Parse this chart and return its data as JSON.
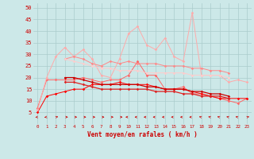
{
  "x": [
    0,
    1,
    2,
    3,
    4,
    5,
    6,
    7,
    8,
    9,
    10,
    11,
    12,
    13,
    14,
    15,
    16,
    17,
    18,
    19,
    20,
    21,
    22,
    23
  ],
  "series": [
    {
      "color": "#ff6666",
      "linewidth": 0.7,
      "markersize": 1.8,
      "values": [
        7,
        19,
        19,
        19,
        19,
        20,
        19,
        18,
        19,
        19,
        21,
        27,
        21,
        21,
        15,
        15,
        16,
        13,
        13,
        12,
        11,
        10,
        9,
        11
      ]
    },
    {
      "color": "#ff0000",
      "linewidth": 0.7,
      "markersize": 1.8,
      "values": [
        5,
        12,
        13,
        14,
        15,
        15,
        17,
        17,
        17,
        18,
        17,
        17,
        17,
        16,
        15,
        15,
        15,
        14,
        13,
        12,
        11,
        11,
        11,
        11
      ]
    },
    {
      "color": "#ffaaaa",
      "linewidth": 0.7,
      "markersize": 1.8,
      "values": [
        6,
        20,
        29,
        33,
        29,
        32,
        28,
        21,
        20,
        28,
        39,
        42,
        34,
        32,
        37,
        29,
        27,
        48,
        21,
        21,
        21,
        18,
        19,
        18
      ]
    },
    {
      "color": "#ff8888",
      "linewidth": 0.7,
      "markersize": 1.8,
      "values": [
        null,
        null,
        null,
        28,
        29,
        28,
        26,
        25,
        27,
        26,
        27,
        26,
        26,
        26,
        25,
        25,
        25,
        24,
        24,
        23,
        23,
        22,
        null,
        null
      ]
    },
    {
      "color": "#ffcccc",
      "linewidth": 0.7,
      "markersize": 1.8,
      "values": [
        null,
        null,
        null,
        28,
        27,
        26,
        25,
        24,
        24,
        23,
        23,
        23,
        22,
        22,
        22,
        22,
        22,
        21,
        21,
        21,
        21,
        20,
        null,
        null
      ]
    },
    {
      "color": "#cc0000",
      "linewidth": 0.9,
      "markersize": 1.8,
      "values": [
        null,
        null,
        null,
        20,
        20,
        19,
        18,
        17,
        17,
        17,
        17,
        17,
        16,
        16,
        15,
        15,
        15,
        14,
        14,
        13,
        13,
        12,
        null,
        null
      ]
    },
    {
      "color": "#dd2222",
      "linewidth": 0.9,
      "markersize": 1.8,
      "values": [
        null,
        null,
        null,
        18,
        18,
        17,
        16,
        15,
        15,
        15,
        15,
        15,
        15,
        14,
        14,
        14,
        13,
        13,
        12,
        12,
        12,
        11,
        null,
        null
      ]
    }
  ],
  "wind_arrows": {
    "x": [
      0,
      1,
      2,
      3,
      4,
      5,
      6,
      7,
      8,
      9,
      10,
      11,
      12,
      13,
      14,
      15,
      16,
      17,
      18,
      19,
      20,
      21,
      22,
      23
    ],
    "angles_deg": [
      225,
      225,
      45,
      90,
      90,
      90,
      90,
      90,
      90,
      90,
      270,
      270,
      270,
      270,
      270,
      270,
      270,
      270,
      315,
      315,
      315,
      315,
      315,
      45
    ],
    "color": "#cc0000",
    "y": 3.0
  },
  "ylim": [
    0,
    52
  ],
  "yticks": [
    5,
    10,
    15,
    20,
    25,
    30,
    35,
    40,
    45,
    50
  ],
  "xlim": [
    -0.5,
    23.5
  ],
  "xticks": [
    0,
    1,
    2,
    3,
    4,
    5,
    6,
    7,
    8,
    9,
    10,
    11,
    12,
    13,
    14,
    15,
    16,
    17,
    18,
    19,
    20,
    21,
    22,
    23
  ],
  "xlabel": "Vent moyen/en rafales ( km/h )",
  "bg_color": "#cce8e8",
  "grid_color": "#aacccc",
  "text_color": "#cc0000"
}
